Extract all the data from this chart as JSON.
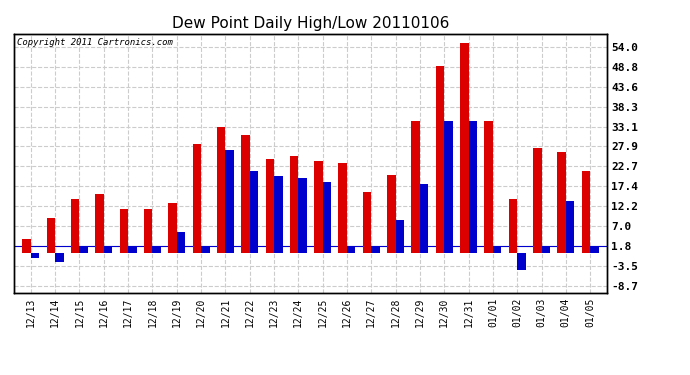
{
  "title": "Dew Point Daily High/Low 20110106",
  "copyright": "Copyright 2011 Cartronics.com",
  "dates": [
    "12/13",
    "12/14",
    "12/15",
    "12/16",
    "12/17",
    "12/18",
    "12/19",
    "12/20",
    "12/21",
    "12/22",
    "12/23",
    "12/24",
    "12/25",
    "12/26",
    "12/27",
    "12/28",
    "12/29",
    "12/30",
    "12/31",
    "01/01",
    "01/02",
    "01/03",
    "01/04",
    "01/05"
  ],
  "highs": [
    3.5,
    9.0,
    14.0,
    15.5,
    11.5,
    11.5,
    13.0,
    28.5,
    33.0,
    31.0,
    24.5,
    25.5,
    24.0,
    23.5,
    16.0,
    20.5,
    34.5,
    49.0,
    55.0,
    34.5,
    14.0,
    27.5,
    26.5,
    21.5
  ],
  "lows": [
    -1.5,
    -2.5,
    1.8,
    1.8,
    1.8,
    1.8,
    5.5,
    1.8,
    27.0,
    21.5,
    20.0,
    19.5,
    18.5,
    1.8,
    1.8,
    8.5,
    18.0,
    34.5,
    34.5,
    1.8,
    -4.5,
    1.8,
    13.5,
    1.8
  ],
  "high_color": "#dd0000",
  "low_color": "#0000cc",
  "bg_color": "#ffffff",
  "grid_color": "#cccccc",
  "yticks": [
    54.0,
    48.8,
    43.6,
    38.3,
    33.1,
    27.9,
    22.7,
    17.4,
    12.2,
    7.0,
    1.8,
    -3.5,
    -8.7
  ],
  "ymin": -10.5,
  "ymax": 57.5,
  "bar_width": 0.35
}
